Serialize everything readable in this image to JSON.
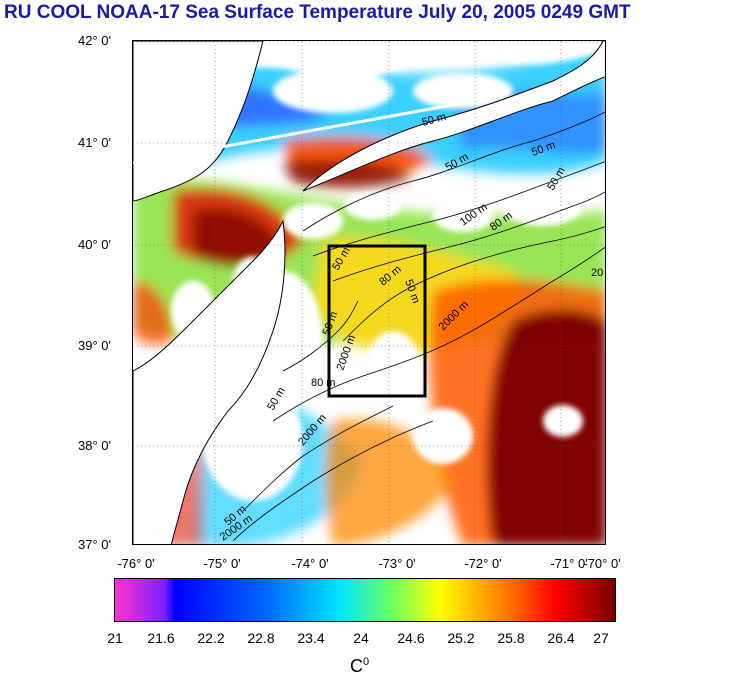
{
  "title": "RU COOL  NOAA-17 Sea Surface Temperature July 20, 2005 0249 GMT",
  "lat_labels": [
    "42° 0'",
    "41° 0'",
    "40° 0'",
    "39° 0'",
    "38° 0'",
    "37° 0'"
  ],
  "lon_labels": [
    "-76° 0'",
    "-75° 0'",
    "-74° 0'",
    "-73° 0'",
    "-72° 0'",
    "-71° 0'",
    "-70° 0'"
  ],
  "contour_labels": [
    "50 m",
    "50 m",
    "50 m",
    "50 m",
    "100 m",
    "80 m",
    "50 m",
    "2000 m",
    "80 m",
    "50 m",
    "50 m",
    "2000 m",
    "50 m",
    "2000 m",
    "80 m",
    "2000 m",
    "20",
    "50 m"
  ],
  "colorbar": {
    "ticks": [
      "21",
      "21.6",
      "22.2",
      "22.8",
      "23.4",
      "24",
      "24.6",
      "25.2",
      "25.8",
      "26.4",
      "27"
    ],
    "unit": "C",
    "unit_sup": "0",
    "min": 21,
    "max": 27
  },
  "colors": {
    "title": "#1a1aa8",
    "coldest": "#ff33cc",
    "cold": "#0000ff",
    "cool": "#00e5ff",
    "mid": "#ffff00",
    "warm": "#ff0000",
    "hottest": "#7a0000"
  }
}
